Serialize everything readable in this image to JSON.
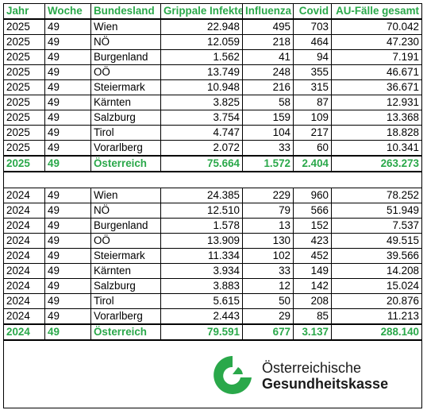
{
  "colors": {
    "accent": "#2aa84a",
    "text": "#000000"
  },
  "table": {
    "headers": [
      "Jahr",
      "Woche",
      "Bundesland",
      "Grippale Infekte",
      "Influenza",
      "Covid",
      "AU-Fälle gesamt"
    ],
    "block_2025": {
      "rows": [
        [
          "2025",
          "49",
          "Wien",
          "22.948",
          "495",
          "703",
          "70.042"
        ],
        [
          "2025",
          "49",
          "NÖ",
          "12.059",
          "218",
          "464",
          "47.230"
        ],
        [
          "2025",
          "49",
          "Burgenland",
          "1.562",
          "41",
          "94",
          "7.191"
        ],
        [
          "2025",
          "49",
          "OÖ",
          "13.749",
          "248",
          "355",
          "46.671"
        ],
        [
          "2025",
          "49",
          "Steiermark",
          "10.948",
          "216",
          "315",
          "36.671"
        ],
        [
          "2025",
          "49",
          "Kärnten",
          "3.825",
          "58",
          "87",
          "12.931"
        ],
        [
          "2025",
          "49",
          "Salzburg",
          "3.754",
          "159",
          "109",
          "13.368"
        ],
        [
          "2025",
          "49",
          "Tirol",
          "4.747",
          "104",
          "217",
          "18.828"
        ],
        [
          "2025",
          "49",
          "Vorarlberg",
          "2.072",
          "33",
          "60",
          "10.341"
        ]
      ],
      "total": [
        "2025",
        "49",
        "Österreich",
        "75.664",
        "1.572",
        "2.404",
        "263.273"
      ]
    },
    "block_2024": {
      "rows": [
        [
          "2024",
          "49",
          "Wien",
          "24.385",
          "229",
          "960",
          "78.252"
        ],
        [
          "2024",
          "49",
          "NÖ",
          "12.510",
          "79",
          "566",
          "51.949"
        ],
        [
          "2024",
          "49",
          "Burgenland",
          "1.578",
          "13",
          "152",
          "7.537"
        ],
        [
          "2024",
          "49",
          "OÖ",
          "13.909",
          "130",
          "423",
          "49.515"
        ],
        [
          "2024",
          "49",
          "Steiermark",
          "11.334",
          "102",
          "452",
          "39.566"
        ],
        [
          "2024",
          "49",
          "Kärnten",
          "3.934",
          "33",
          "149",
          "14.208"
        ],
        [
          "2024",
          "49",
          "Salzburg",
          "3.883",
          "12",
          "142",
          "15.024"
        ],
        [
          "2024",
          "49",
          "Tirol",
          "5.615",
          "50",
          "208",
          "20.876"
        ],
        [
          "2024",
          "49",
          "Vorarlberg",
          "2.443",
          "29",
          "85",
          "11.213"
        ]
      ],
      "total": [
        "2024",
        "49",
        "Österreich",
        "79.591",
        "677",
        "3.137",
        "288.140"
      ]
    }
  },
  "logo": {
    "line1": "Österreichische",
    "line2": "Gesundheitskasse",
    "icon": "oegk-logo-icon"
  }
}
